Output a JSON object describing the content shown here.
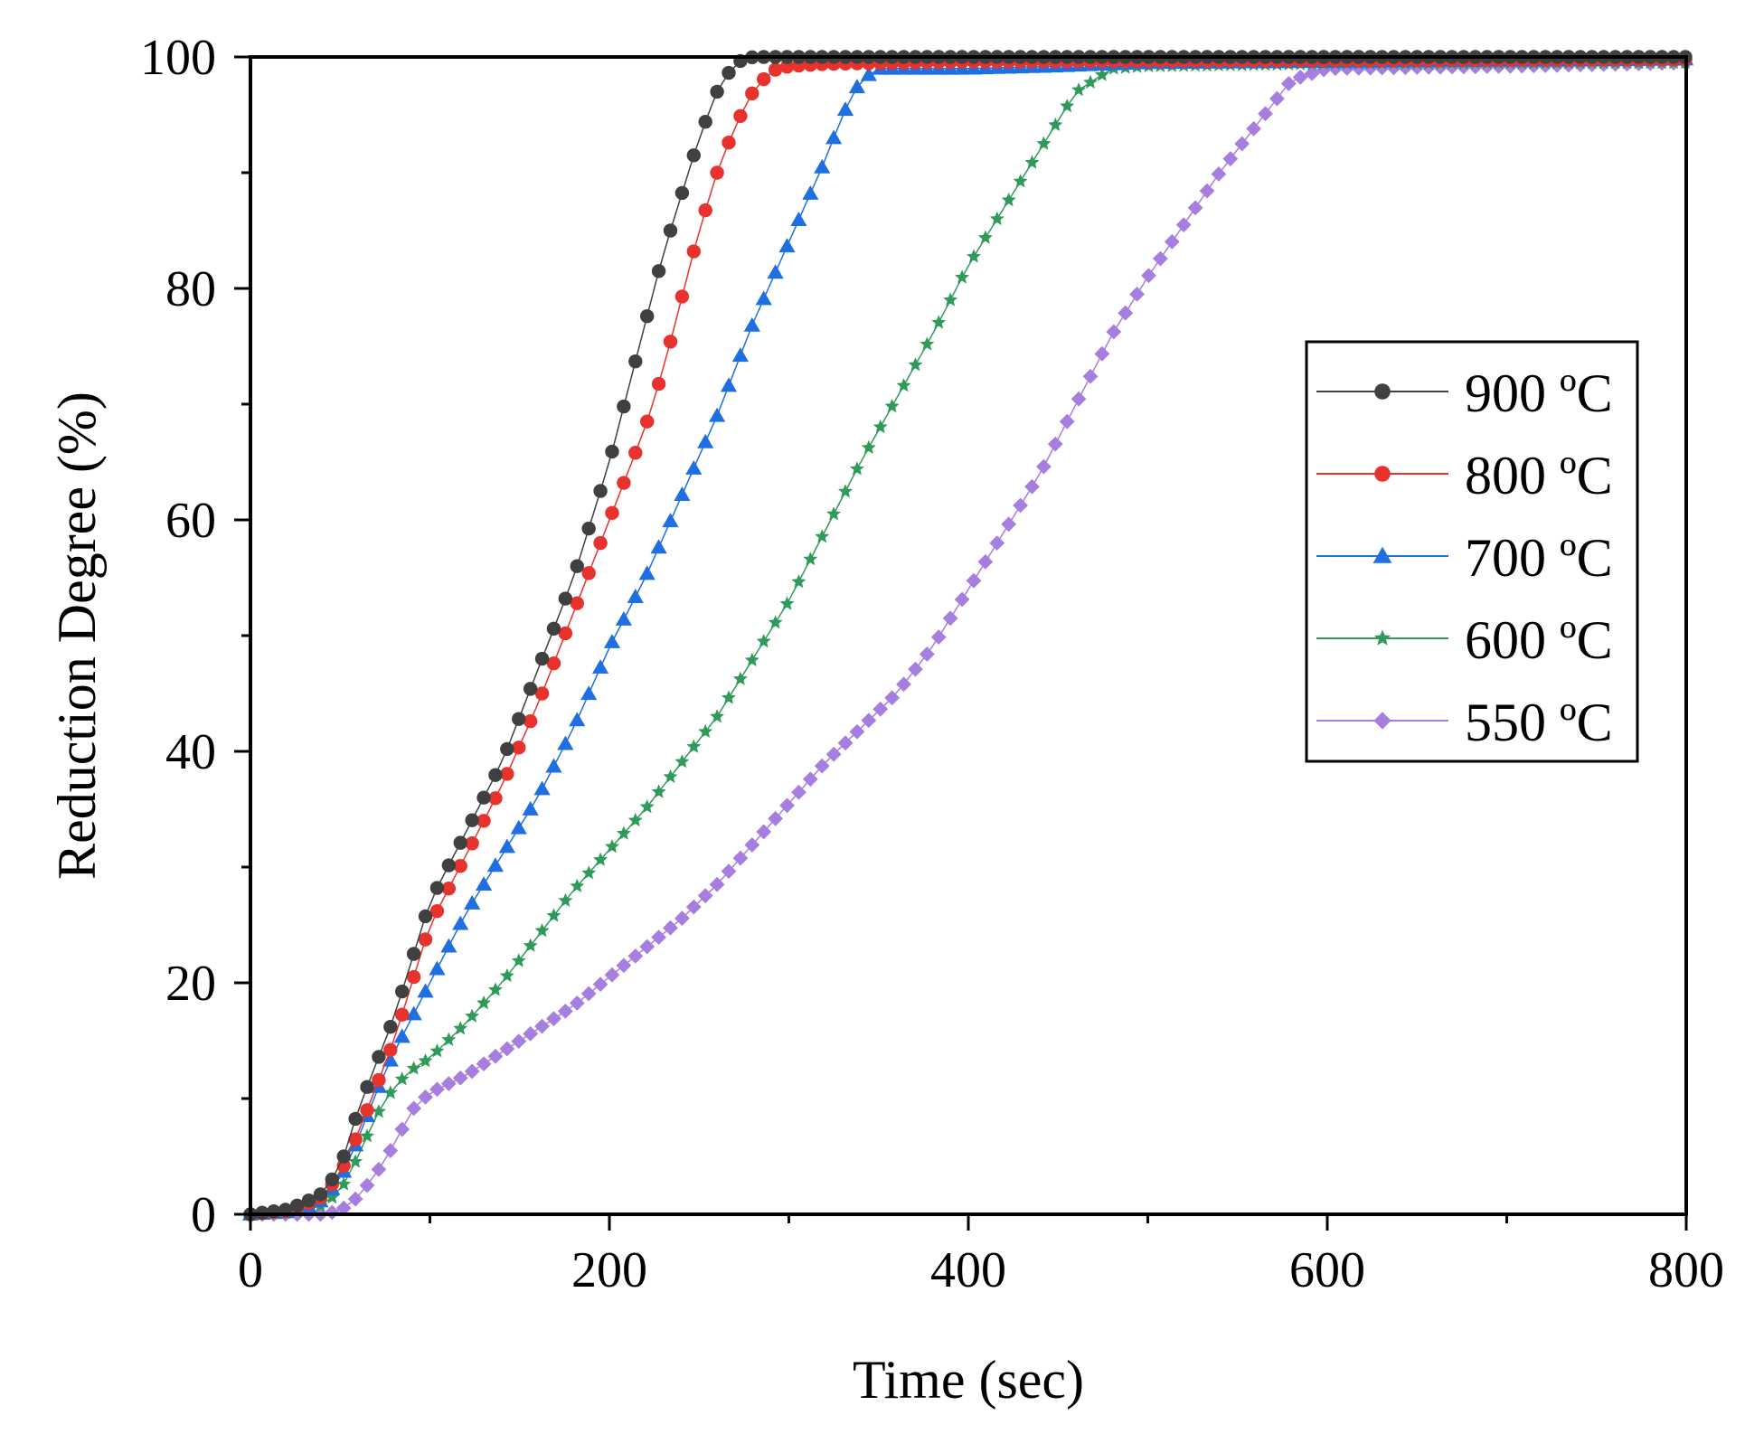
{
  "chart_data": {
    "type": "line",
    "title": "",
    "xlabel": "Time (sec)",
    "ylabel": "Reduction Degree (%)",
    "xlim": [
      0,
      800
    ],
    "ylim": [
      0,
      100
    ],
    "xticks": [
      0,
      200,
      400,
      600,
      800
    ],
    "yticks": [
      0,
      20,
      40,
      60,
      80,
      100
    ],
    "xtick_labels": [
      "0",
      "200",
      "400",
      "600",
      "800"
    ],
    "ytick_labels": [
      "0",
      "20",
      "40",
      "60",
      "80",
      "100"
    ],
    "grid": false,
    "legend_position": "right-middle",
    "series": [
      {
        "name": "900 ºC",
        "color": "#404040",
        "marker": "circle",
        "points": [
          [
            0,
            0
          ],
          [
            20,
            0.4
          ],
          [
            30,
            1.0
          ],
          [
            40,
            1.8
          ],
          [
            50,
            4
          ],
          [
            55,
            6.5
          ],
          [
            60,
            9
          ],
          [
            70,
            13
          ],
          [
            80,
            17
          ],
          [
            90,
            22
          ],
          [
            100,
            27
          ],
          [
            110,
            30
          ],
          [
            120,
            33
          ],
          [
            140,
            39
          ],
          [
            160,
            47
          ],
          [
            180,
            55
          ],
          [
            200,
            65
          ],
          [
            210,
            71
          ],
          [
            220,
            77
          ],
          [
            230,
            83
          ],
          [
            240,
            88
          ],
          [
            250,
            93
          ],
          [
            260,
            97
          ],
          [
            270,
            99.5
          ],
          [
            280,
            100
          ],
          [
            300,
            100
          ],
          [
            800,
            100
          ]
        ]
      },
      {
        "name": "800 ºC",
        "color": "#e8322d",
        "marker": "circle",
        "points": [
          [
            0,
            0
          ],
          [
            20,
            0.3
          ],
          [
            30,
            0.8
          ],
          [
            40,
            1.5
          ],
          [
            50,
            3.5
          ],
          [
            60,
            7
          ],
          [
            70,
            11
          ],
          [
            80,
            15
          ],
          [
            90,
            20
          ],
          [
            100,
            25
          ],
          [
            110,
            28
          ],
          [
            120,
            31
          ],
          [
            140,
            37
          ],
          [
            160,
            44
          ],
          [
            180,
            52
          ],
          [
            200,
            60
          ],
          [
            220,
            68
          ],
          [
            230,
            73
          ],
          [
            240,
            79
          ],
          [
            250,
            85
          ],
          [
            260,
            90
          ],
          [
            270,
            94
          ],
          [
            280,
            97
          ],
          [
            290,
            98.8
          ],
          [
            300,
            99.2
          ],
          [
            320,
            99.4
          ],
          [
            400,
            99.6
          ],
          [
            800,
            99.8
          ]
        ]
      },
      {
        "name": "700 ºC",
        "color": "#1f6fe0",
        "marker": "triangle",
        "points": [
          [
            0,
            0
          ],
          [
            20,
            0.2
          ],
          [
            30,
            0.5
          ],
          [
            40,
            1.2
          ],
          [
            50,
            3
          ],
          [
            60,
            6.5
          ],
          [
            70,
            10.5
          ],
          [
            80,
            14
          ],
          [
            90,
            17
          ],
          [
            100,
            20
          ],
          [
            110,
            23
          ],
          [
            120,
            26
          ],
          [
            140,
            31
          ],
          [
            160,
            36
          ],
          [
            180,
            42
          ],
          [
            200,
            49
          ],
          [
            220,
            55
          ],
          [
            240,
            62
          ],
          [
            260,
            69
          ],
          [
            280,
            77
          ],
          [
            300,
            84
          ],
          [
            320,
            91
          ],
          [
            330,
            95
          ],
          [
            340,
            98
          ],
          [
            350,
            99
          ],
          [
            400,
            99
          ],
          [
            450,
            99.2
          ],
          [
            500,
            99.5
          ],
          [
            800,
            99.8
          ]
        ]
      },
      {
        "name": "600 ºC",
        "color": "#2f9a5a",
        "marker": "star",
        "points": [
          [
            0,
            0
          ],
          [
            20,
            0.1
          ],
          [
            30,
            0.3
          ],
          [
            40,
            0.8
          ],
          [
            50,
            2
          ],
          [
            60,
            5
          ],
          [
            70,
            8.5
          ],
          [
            80,
            11
          ],
          [
            90,
            12.5
          ],
          [
            100,
            13.5
          ],
          [
            120,
            16.5
          ],
          [
            140,
            20
          ],
          [
            160,
            24
          ],
          [
            180,
            28
          ],
          [
            200,
            31.5
          ],
          [
            220,
            35
          ],
          [
            240,
            39
          ],
          [
            260,
            43
          ],
          [
            280,
            48
          ],
          [
            300,
            53
          ],
          [
            320,
            59
          ],
          [
            340,
            65
          ],
          [
            360,
            70.5
          ],
          [
            380,
            76
          ],
          [
            400,
            82
          ],
          [
            420,
            87
          ],
          [
            440,
            92
          ],
          [
            460,
            97
          ],
          [
            480,
            99
          ],
          [
            500,
            99.2
          ],
          [
            600,
            99.4
          ],
          [
            800,
            99.5
          ]
        ]
      },
      {
        "name": "550 ºC",
        "color": "#a67ee0",
        "marker": "diamond",
        "points": [
          [
            0,
            0
          ],
          [
            40,
            0
          ],
          [
            50,
            0.3
          ],
          [
            60,
            1.5
          ],
          [
            70,
            3.5
          ],
          [
            80,
            6
          ],
          [
            90,
            9
          ],
          [
            100,
            10.5
          ],
          [
            120,
            12
          ],
          [
            140,
            14
          ],
          [
            160,
            16
          ],
          [
            180,
            18
          ],
          [
            200,
            20.5
          ],
          [
            220,
            23
          ],
          [
            240,
            25.5
          ],
          [
            260,
            28.5
          ],
          [
            280,
            32
          ],
          [
            300,
            35.5
          ],
          [
            320,
            39
          ],
          [
            340,
            42
          ],
          [
            360,
            45
          ],
          [
            380,
            49
          ],
          [
            400,
            54
          ],
          [
            420,
            59
          ],
          [
            440,
            64
          ],
          [
            460,
            70
          ],
          [
            480,
            76
          ],
          [
            500,
            81
          ],
          [
            520,
            85.5
          ],
          [
            540,
            90
          ],
          [
            560,
            94
          ],
          [
            580,
            98
          ],
          [
            600,
            99
          ],
          [
            700,
            99.2
          ],
          [
            800,
            99.5
          ]
        ]
      }
    ]
  }
}
